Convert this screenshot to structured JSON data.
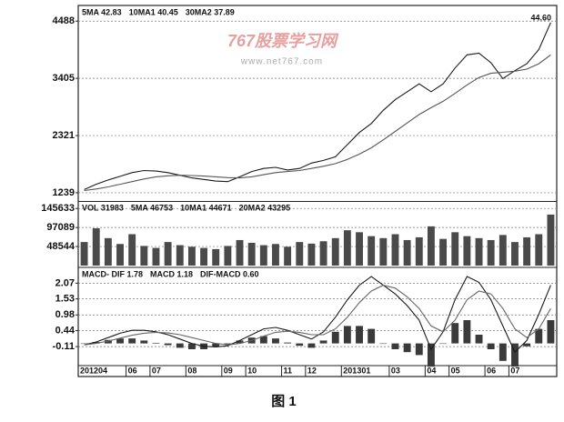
{
  "chart_data": [
    {
      "type": "line",
      "header": [
        "5MA 42.83",
        "10MA1 40.45",
        "30MA2 37.89"
      ],
      "annotation": "44.60",
      "ylim": [
        1100,
        4750
      ],
      "yticks": [
        1239,
        2321,
        3405,
        4488
      ],
      "grid": true,
      "series": [
        {
          "color": "#1a1a1a",
          "values": [
            1300,
            1400,
            1480,
            1550,
            1620,
            1660,
            1650,
            1620,
            1570,
            1520,
            1490,
            1460,
            1450,
            1540,
            1640,
            1700,
            1720,
            1670,
            1700,
            1800,
            1850,
            1920,
            2150,
            2380,
            2550,
            2800,
            3000,
            3150,
            3300,
            3150,
            3300,
            3600,
            3850,
            3880,
            3700,
            3400,
            3550,
            3680,
            3950,
            4460
          ]
        },
        {
          "color": "#555555",
          "values": [
            1280,
            1310,
            1350,
            1400,
            1450,
            1500,
            1540,
            1560,
            1570,
            1565,
            1555,
            1540,
            1525,
            1520,
            1540,
            1580,
            1620,
            1640,
            1660,
            1700,
            1740,
            1790,
            1870,
            1970,
            2090,
            2240,
            2400,
            2560,
            2720,
            2850,
            2970,
            3120,
            3280,
            3420,
            3500,
            3520,
            3540,
            3580,
            3680,
            3850
          ]
        }
      ]
    },
    {
      "type": "bar",
      "header": [
        "VOL 31983",
        "5MA 46753",
        "10MA1 44671",
        "20MA2 43295"
      ],
      "ylim": [
        0,
        160000
      ],
      "yticks": [
        48544,
        97089,
        145633
      ],
      "grid": true,
      "color": "#4a4a4a",
      "values": [
        60000,
        95000,
        70000,
        55000,
        80000,
        50000,
        45000,
        60000,
        52000,
        48000,
        45000,
        42000,
        50000,
        65000,
        58000,
        52000,
        55000,
        48000,
        60000,
        56000,
        62000,
        70000,
        90000,
        85000,
        75000,
        70000,
        80000,
        65000,
        72000,
        100000,
        68000,
        85000,
        75000,
        70000,
        65000,
        78000,
        60000,
        72000,
        80000,
        130000
      ]
    },
    {
      "type": "macd",
      "header": [
        "MACD- DIF 1.78",
        "MACD 1.18",
        "DIF-MACD 0.60"
      ],
      "ylim": [
        -0.7,
        2.55
      ],
      "yticks": [
        -0.11,
        0.44,
        0.98,
        1.53,
        2.07
      ],
      "grid": true,
      "series": [
        {
          "color": "#1a1a1a",
          "values": [
            -0.05,
            0.05,
            0.2,
            0.35,
            0.45,
            0.45,
            0.4,
            0.3,
            0.15,
            0.0,
            -0.1,
            -0.12,
            -0.08,
            0.1,
            0.3,
            0.5,
            0.55,
            0.45,
            0.3,
            0.15,
            0.4,
            0.9,
            1.5,
            2.0,
            2.3,
            2.0,
            1.7,
            1.3,
            0.8,
            -0.2,
            0.4,
            1.5,
            2.3,
            2.1,
            1.5,
            0.6,
            -0.3,
            0.1,
            1.0,
            2.0
          ]
        },
        {
          "color": "#666666",
          "values": [
            -0.05,
            0.0,
            0.08,
            0.18,
            0.28,
            0.35,
            0.38,
            0.36,
            0.3,
            0.2,
            0.1,
            0.0,
            -0.05,
            0.0,
            0.1,
            0.25,
            0.38,
            0.42,
            0.38,
            0.3,
            0.3,
            0.5,
            0.9,
            1.4,
            1.8,
            2.0,
            1.9,
            1.6,
            1.2,
            0.6,
            0.4,
            0.8,
            1.5,
            1.8,
            1.7,
            1.2,
            0.5,
            0.2,
            0.5,
            1.2
          ]
        }
      ],
      "histogram": {
        "color": "#3a3a3a",
        "values": [
          0,
          0.05,
          0.12,
          0.17,
          0.17,
          0.1,
          0.02,
          -0.06,
          -0.15,
          -0.2,
          -0.2,
          -0.12,
          -0.03,
          0.1,
          0.2,
          0.25,
          0.17,
          0.03,
          -0.08,
          -0.15,
          0.1,
          0.4,
          0.6,
          0.6,
          0.5,
          0,
          -0.2,
          -0.3,
          -0.4,
          -0.8,
          0,
          0.7,
          0.8,
          0.3,
          -0.2,
          -0.6,
          -0.8,
          -0.1,
          0.5,
          0.8
        ]
      },
      "categories": [
        "201204",
        null,
        null,
        null,
        "06",
        null,
        "07",
        null,
        null,
        "08",
        null,
        null,
        "09",
        null,
        "10",
        null,
        null,
        "11",
        null,
        "12",
        null,
        null,
        "201301",
        null,
        null,
        null,
        "03",
        null,
        null,
        "04",
        null,
        "05",
        null,
        null,
        "06",
        null,
        "07",
        null,
        null,
        null
      ]
    }
  ],
  "watermark": {
    "title": "767股票学习网",
    "url": "www.net767.com"
  },
  "caption": "图 1"
}
